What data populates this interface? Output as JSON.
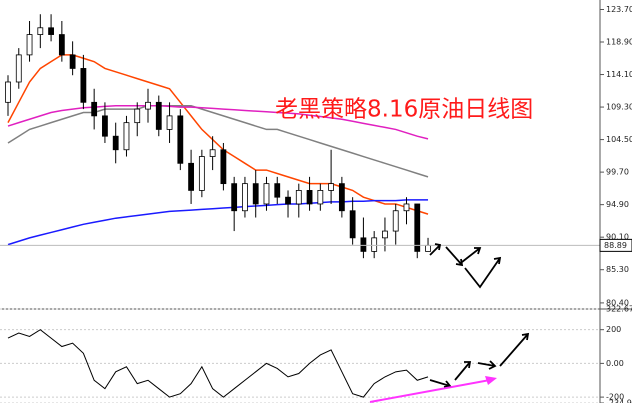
{
  "chart_data": [
    {
      "type": "candlestick",
      "annotation": "老黑策略8.16原油日线图",
      "ylim": [
        79.5,
        125.1
      ],
      "yticks": [
        {
          "value": 123.7,
          "label": "123.70"
        },
        {
          "value": 118.9,
          "label": "118.90"
        },
        {
          "value": 114.1,
          "label": "114.10"
        },
        {
          "value": 109.3,
          "label": "109.30"
        },
        {
          "value": 104.5,
          "label": "104.50"
        },
        {
          "value": 99.7,
          "label": "99.70"
        },
        {
          "value": 94.9,
          "label": "94.90"
        },
        {
          "value": 90.1,
          "label": "90.10"
        },
        {
          "value": 85.3,
          "label": "85.30"
        },
        {
          "value": 80.4,
          "label": "80.40"
        }
      ],
      "last_price": 88.89,
      "up_color": "#ffffff",
      "down_color": "#000000",
      "open": [
        110,
        113,
        117,
        120,
        121,
        120,
        117,
        115,
        110,
        108,
        105,
        103,
        107,
        109,
        110,
        106,
        108,
        101,
        97,
        102,
        103,
        98,
        94,
        98,
        95,
        98,
        96,
        95,
        97,
        95,
        97,
        98,
        94,
        90,
        88,
        90,
        91,
        94,
        95,
        88
      ],
      "high": [
        114,
        118,
        122,
        123,
        123,
        122,
        119,
        117,
        112,
        110,
        107,
        108,
        110,
        112,
        111,
        110,
        109,
        103,
        103,
        105,
        104,
        99,
        99,
        100,
        99,
        99,
        97,
        98,
        99,
        98,
        103,
        99,
        96,
        93,
        91,
        93,
        95,
        96,
        95,
        90
      ],
      "low": [
        108,
        112,
        116,
        118,
        119,
        116,
        114,
        109,
        106,
        104,
        101,
        102,
        105,
        107,
        105,
        104,
        100,
        95,
        96,
        100,
        97,
        91,
        93,
        93,
        94,
        95,
        93,
        93,
        94,
        94,
        95,
        93,
        89,
        87,
        87,
        88,
        89,
        92,
        87,
        88
      ],
      "close": [
        113,
        117,
        120,
        121,
        120,
        117,
        115,
        110,
        108,
        105,
        103,
        107,
        109,
        110,
        106,
        108,
        101,
        97,
        102,
        103,
        98,
        94,
        98,
        95,
        98,
        96,
        95,
        97,
        95,
        97,
        98,
        94,
        90,
        88,
        90,
        91,
        94,
        95,
        88,
        88.89
      ],
      "lines": [
        {
          "color": "#ff4500",
          "values": [
            107,
            110,
            113,
            115,
            116,
            117,
            117,
            116.5,
            116,
            115,
            114.5,
            114,
            113.5,
            113,
            112.5,
            112,
            110,
            108,
            106,
            104.5,
            103,
            102,
            101,
            100,
            100,
            99.5,
            99,
            98.5,
            98,
            98,
            98,
            97.5,
            97,
            96,
            95.5,
            95,
            95,
            94.5,
            94,
            93.5
          ]
        },
        {
          "color": "#808080",
          "values": [
            104,
            105,
            106,
            106.5,
            107,
            107.5,
            108,
            108.5,
            108.5,
            109,
            109,
            109,
            109,
            109.5,
            109.5,
            109.5,
            109.5,
            109.5,
            109,
            108.5,
            108,
            107.5,
            107,
            106.5,
            106,
            106,
            105.5,
            105,
            104.5,
            104,
            103.5,
            103,
            102.5,
            102,
            101.5,
            101,
            100.5,
            100,
            99.5,
            99
          ]
        },
        {
          "color": "#1a1aff",
          "values": [
            89,
            89.5,
            90,
            90.4,
            90.8,
            91.2,
            91.6,
            92,
            92.3,
            92.6,
            92.9,
            93.1,
            93.3,
            93.5,
            93.7,
            93.9,
            94,
            94.1,
            94.2,
            94.3,
            94.4,
            94.5,
            94.6,
            94.7,
            94.8,
            94.9,
            95,
            95,
            95.1,
            95.2,
            95.3,
            95.3,
            95.4,
            95.4,
            95.5,
            95.5,
            95.5,
            95.6,
            95.6,
            95.6
          ]
        },
        {
          "color": "#e020c0",
          "values": [
            106.5,
            107,
            107.5,
            108,
            108.5,
            108.8,
            109,
            109.2,
            109.3,
            109.4,
            109.5,
            109.5,
            109.5,
            109.5,
            109.5,
            109.4,
            109.3,
            109.3,
            109.2,
            109.1,
            109,
            108.9,
            108.8,
            108.7,
            108.6,
            108.5,
            108.4,
            108.3,
            108.1,
            107.9,
            107.7,
            107.5,
            107.2,
            106.9,
            106.6,
            106.3,
            106,
            105.5,
            105,
            104.6
          ]
        }
      ]
    },
    {
      "type": "line",
      "color": "#000000",
      "ylim": [
        -234.94,
        322.67
      ],
      "yticks": [
        322.67,
        200,
        {
          "value": 0,
          "label": "0.00"
        },
        -200,
        -234.94
      ],
      "values": [
        150,
        180,
        160,
        200,
        150,
        100,
        120,
        60,
        -100,
        -150,
        -50,
        -20,
        -120,
        -100,
        -150,
        -200,
        -180,
        -120,
        -20,
        -150,
        -200,
        -150,
        -100,
        -50,
        0,
        -30,
        -80,
        -60,
        0,
        50,
        80,
        -50,
        -180,
        -200,
        -120,
        -80,
        -50,
        -40,
        -100,
        -80
      ]
    }
  ]
}
